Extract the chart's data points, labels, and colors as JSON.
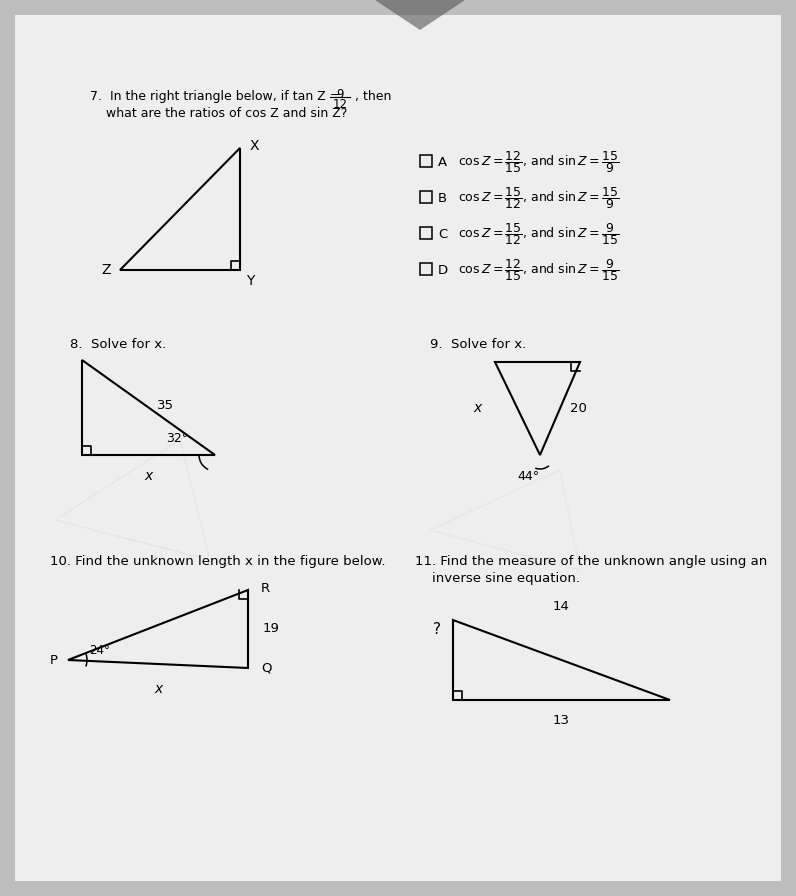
{
  "bg_color": "#bebebe",
  "page_color": "#eeeeee",
  "q7_line1": "7.  In the right triangle below, if tan Z = ",
  "q7_frac_num": "9",
  "q7_frac_den": "12",
  "q7_line2": ", then",
  "q7_line3": "    what are the ratios of cos Z and sin Z?",
  "q7_choices": [
    [
      "A",
      "cos Z = \\frac{12}{15}, and sin Z = \\frac{15}{9}"
    ],
    [
      "B",
      "cos Z = \\frac{15}{12}, and sin Z = \\frac{15}{9}"
    ],
    [
      "C",
      "cos Z = \\frac{15}{12}, and sin Z = \\frac{9}{15}"
    ],
    [
      "D",
      "cos Z = \\frac{12}{15}, and sin Z = \\frac{9}{15}"
    ]
  ],
  "q8_title": "8.  Solve for x.",
  "q9_title": "9.  Solve for x.",
  "q10_title": "10. Find the unknown length x in the figure below.",
  "q11_title1": "11. Find the measure of the unknown angle using an",
  "q11_title2": "    inverse sine equation."
}
